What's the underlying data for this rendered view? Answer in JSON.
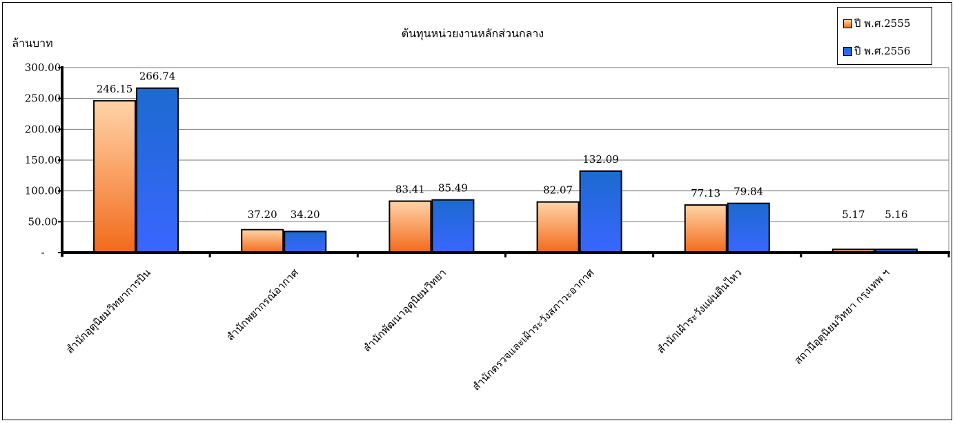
{
  "chart_data": {
    "type": "bar",
    "title": "ต้นทุนหน่วยงานหลักส่วนกลาง",
    "ylabel": "ล้านบาท",
    "ylim": [
      0,
      300
    ],
    "yticks": [
      "-",
      "50.00",
      "100.00",
      "150.00",
      "200.00",
      "250.00",
      "300.00"
    ],
    "ytick_values": [
      0,
      50,
      100,
      150,
      200,
      250,
      300
    ],
    "categories": [
      "สำนักอุตุนิยมวิทยาการบิน",
      "สำนักพยากรณ์อากาศ",
      "สำนักพัฒนาอุตุนิยมวิทยา",
      "สำนักตรวจและเฝ้าระวังสภาวะอากาศ",
      "สำนักเฝ้าระวังแผ่นดินไหว",
      "สถานีอุตุนิยมวิทยา กรุงเทพ ฯ"
    ],
    "series": [
      {
        "name": "ปี พ.ศ.2555",
        "values": [
          246.15,
          37.2,
          83.41,
          82.07,
          77.13,
          5.17
        ],
        "labels": [
          "246.15",
          "37.20",
          "83.41",
          "82.07",
          "77.13",
          "5.17"
        ],
        "color_top": "#ffd4a8",
        "color_bottom": "#f26a1a"
      },
      {
        "name": "ปี พ.ศ.2556",
        "values": [
          266.74,
          34.2,
          85.49,
          132.09,
          79.84,
          5.16
        ],
        "labels": [
          "266.74",
          "34.20",
          "85.49",
          "132.09",
          "79.84",
          "5.16"
        ],
        "color_top": "#1c6ad0",
        "color_bottom": "#3a66ff"
      }
    ],
    "grid": true,
    "legend": "top-right"
  }
}
